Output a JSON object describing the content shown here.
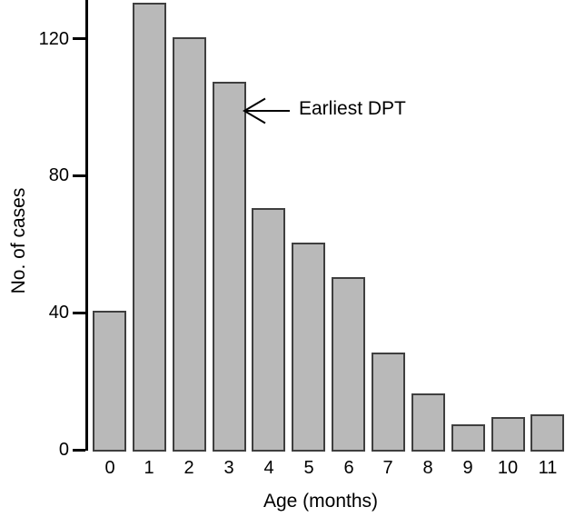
{
  "chart_data": {
    "type": "bar",
    "title": "",
    "categories": [
      "0",
      "1",
      "2",
      "3",
      "4",
      "5",
      "6",
      "7",
      "8",
      "9",
      "10",
      "11"
    ],
    "values": [
      41,
      131,
      121,
      108,
      71,
      61,
      51,
      29,
      17,
      8,
      10,
      11
    ],
    "xlabel": "Age (months)",
    "ylabel": "No. of cases",
    "yticks": [
      0,
      40,
      80,
      120
    ],
    "ylim": [
      0,
      132
    ],
    "grid": false,
    "legend": "none",
    "bar_fill_color": "#b9b9b9",
    "bar_border_color": "#3f3f3f",
    "axis_color": "#000000",
    "annotation": {
      "text": "Earliest DPT",
      "arrow_direction": "left",
      "points_to": "right side of bar for age 3 months at about 99 cases"
    }
  }
}
